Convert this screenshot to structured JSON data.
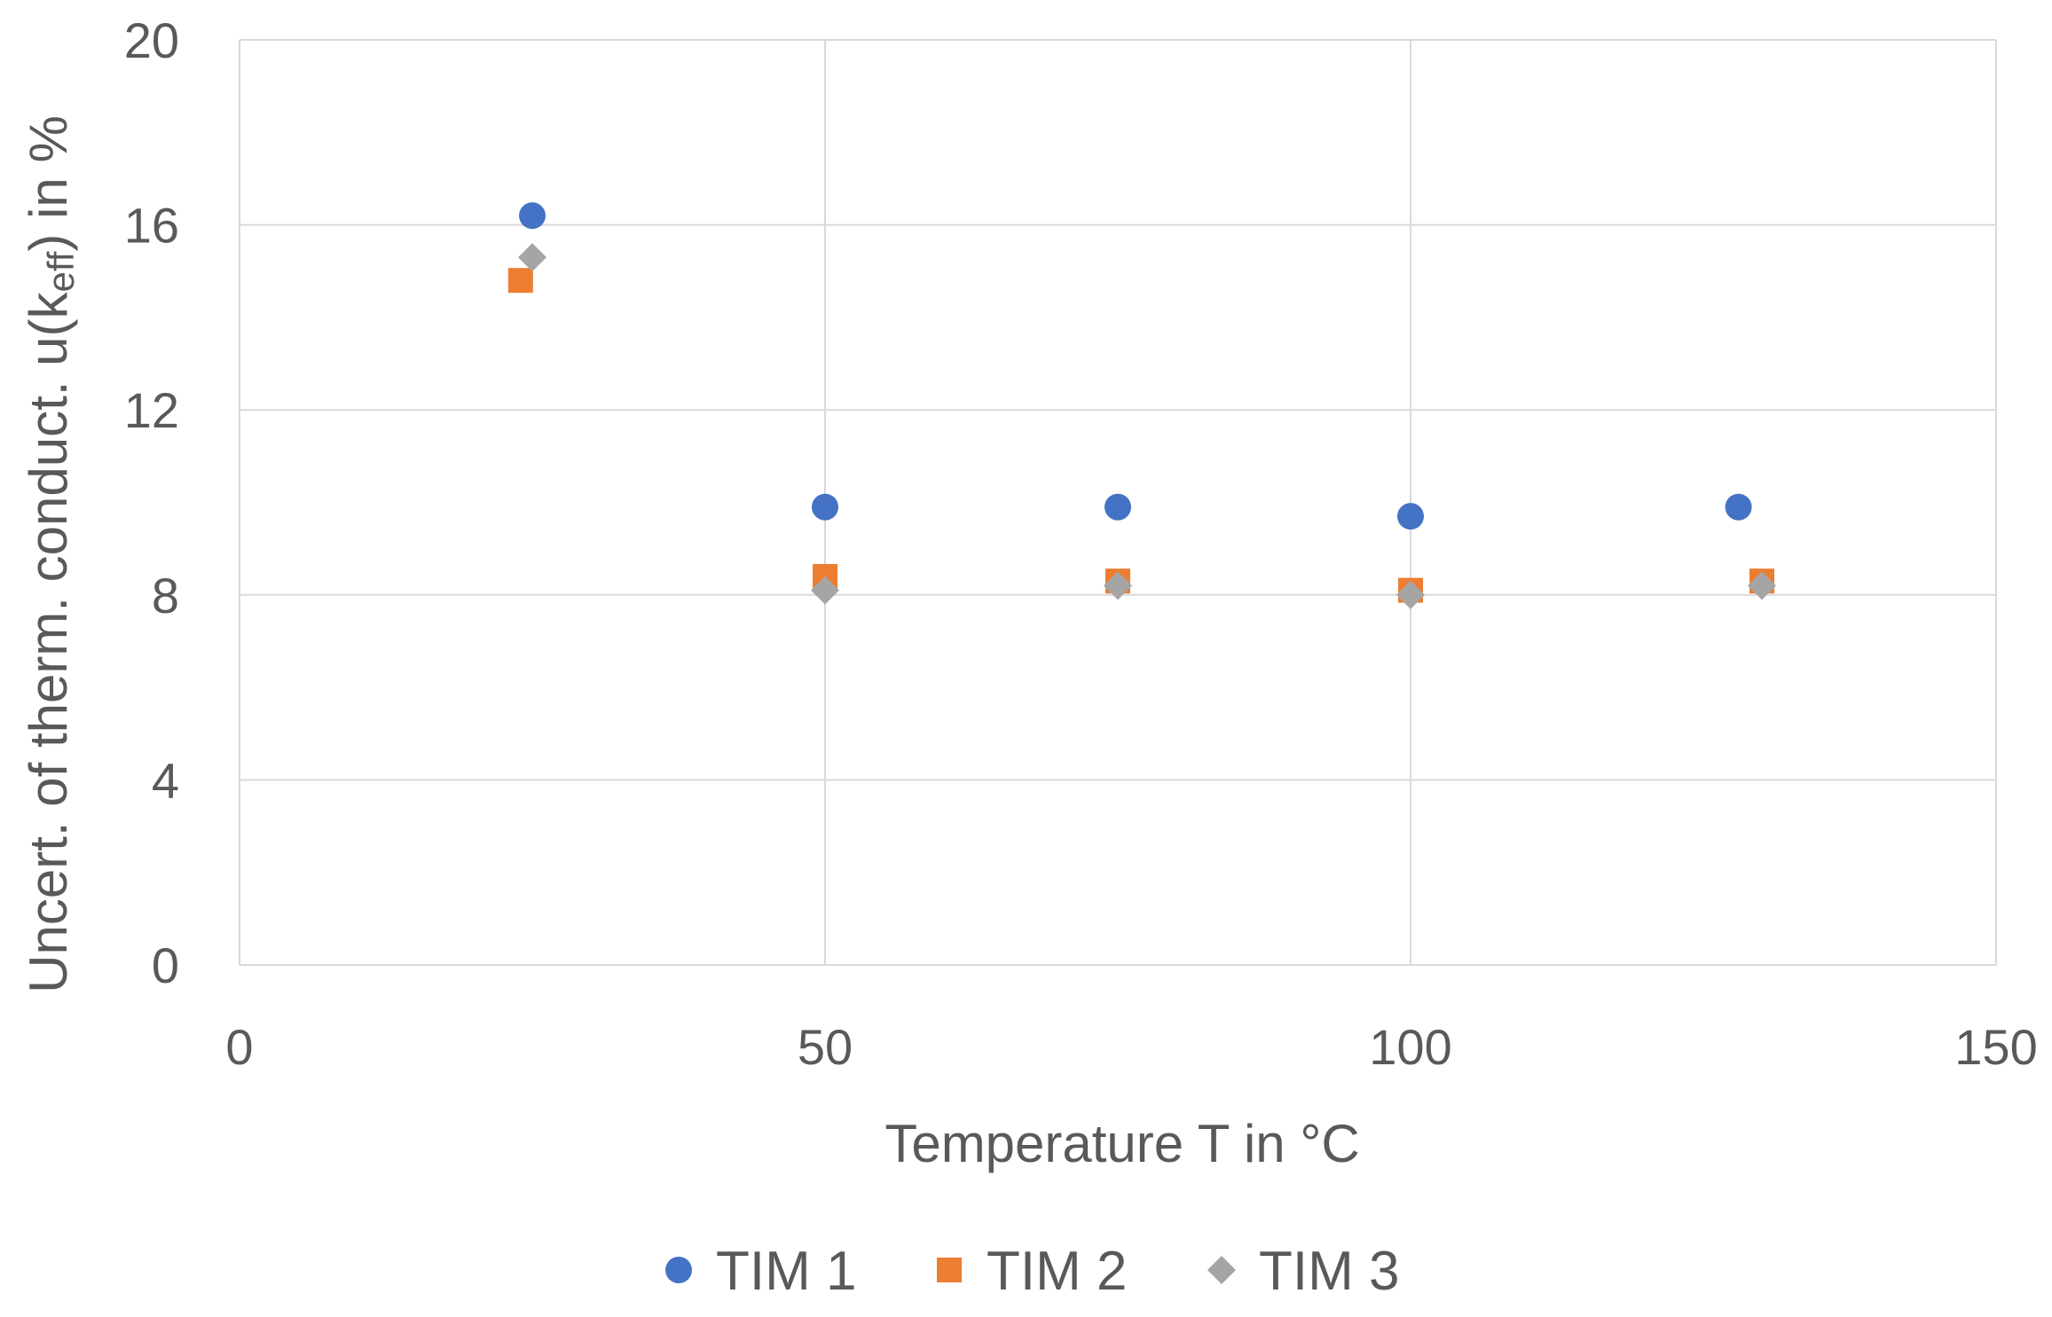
{
  "colors": {
    "tim1": "#4472C4",
    "tim2": "#ED7D31",
    "tim3": "#A5A5A5",
    "grid": "#D9D9D9",
    "text": "#595959"
  },
  "chart_data": {
    "type": "scatter",
    "title": "",
    "xlabel": "Temperature T in °C",
    "ylabel": "Uncert. of therm. conduct. u(keff) in %",
    "ylabel_parts": {
      "pre": "Uncert. of therm. conduct. u(k",
      "sub": "eff",
      "post": ") in %"
    },
    "xlim": [
      0,
      150
    ],
    "ylim": [
      0,
      20
    ],
    "x_ticks": [
      0,
      50,
      100,
      150
    ],
    "y_ticks": [
      0,
      4,
      8,
      12,
      16,
      20
    ],
    "grid": true,
    "legend_position": "bottom",
    "series": [
      {
        "name": "TIM 1",
        "marker": "circle",
        "color": "#4472C4",
        "points": [
          [
            25,
            16.2
          ],
          [
            50,
            9.9
          ],
          [
            75,
            9.9
          ],
          [
            100,
            9.7
          ],
          [
            128,
            9.9
          ]
        ]
      },
      {
        "name": "TIM 2",
        "marker": "square",
        "color": "#ED7D31",
        "points": [
          [
            24,
            14.8
          ],
          [
            50,
            8.4
          ],
          [
            75,
            8.3
          ],
          [
            100,
            8.1
          ],
          [
            130,
            8.3
          ]
        ]
      },
      {
        "name": "TIM 3",
        "marker": "diamond",
        "color": "#A5A5A5",
        "points": [
          [
            25,
            15.3
          ],
          [
            50,
            8.1
          ],
          [
            75,
            8.2
          ],
          [
            100,
            8.0
          ],
          [
            130,
            8.2
          ]
        ]
      }
    ]
  }
}
